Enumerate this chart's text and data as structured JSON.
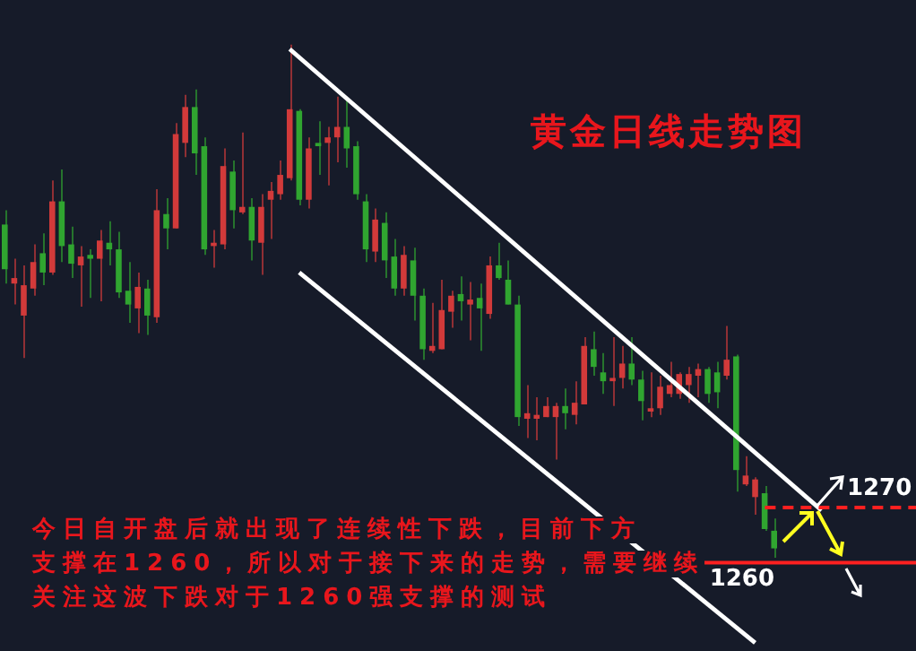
{
  "chart_data": {
    "type": "candlestick",
    "title": "黄金日线走势图",
    "annotations": [
      "今日自开盘后就出现了连续性下跌，目前下方",
      "支撑在1260，所以对于接下来的走势，需要继续",
      "关注这波下跌对于1260强支撑的测试"
    ],
    "categories": [
      null,
      null,
      null,
      null,
      null,
      null,
      null,
      null,
      null,
      null,
      null,
      null,
      null,
      null,
      null,
      null,
      null,
      null,
      null,
      null,
      null,
      null,
      null,
      null,
      null,
      null,
      null,
      null,
      null,
      null,
      null,
      null,
      null,
      null,
      null,
      null,
      null,
      null,
      null,
      null,
      null,
      null,
      null,
      null,
      null,
      null,
      null,
      null,
      null,
      null,
      null,
      null,
      null,
      null,
      null,
      null,
      null,
      null,
      null,
      null,
      null,
      null,
      null,
      null,
      null,
      null,
      null,
      null,
      null,
      null,
      null,
      null,
      null,
      null,
      null,
      null,
      null,
      null,
      null,
      null,
      null,
      null,
      null,
      null,
      null,
      null,
      null
    ],
    "ohlc": [
      [
        1321.3,
        1323.9,
        1310.6,
        1313.2
      ],
      [
        1310.6,
        1315.1,
        1306.8,
        1311.6
      ],
      [
        1304.8,
        1313.9,
        1297.1,
        1310.3
      ],
      [
        1309.7,
        1317.7,
        1308.4,
        1314.5
      ],
      [
        1316.1,
        1319.7,
        1310.3,
        1312.6
      ],
      [
        1312.6,
        1329.3,
        1312.2,
        1325.5
      ],
      [
        1325.5,
        1331.3,
        1314.5,
        1317.4
      ],
      [
        1317.7,
        1320.9,
        1311.6,
        1314.2
      ],
      [
        1313.9,
        1317.4,
        1306.4,
        1315.5
      ],
      [
        1315.8,
        1316.8,
        1308.0,
        1315.1
      ],
      [
        1315.1,
        1320.3,
        1307.4,
        1318.4
      ],
      [
        1318.0,
        1321.9,
        1313.9,
        1316.8
      ],
      [
        1316.8,
        1320.0,
        1308.0,
        1309.0
      ],
      [
        1309.3,
        1314.5,
        1303.5,
        1306.8
      ],
      [
        1306.1,
        1312.6,
        1301.6,
        1310.0
      ],
      [
        1309.7,
        1311.3,
        1301.3,
        1304.8
      ],
      [
        1304.5,
        1327.7,
        1303.5,
        1323.9
      ],
      [
        1323.2,
        1326.1,
        1316.8,
        1320.6
      ],
      [
        1320.6,
        1339.7,
        1320.6,
        1337.7
      ],
      [
        1336.1,
        1344.8,
        1333.5,
        1342.6
      ],
      [
        1342.6,
        1345.8,
        1330.3,
        1334.2
      ],
      [
        1335.5,
        1337.1,
        1315.8,
        1316.8
      ],
      [
        1317.4,
        1320.3,
        1313.5,
        1318.0
      ],
      [
        1317.7,
        1335.1,
        1316.8,
        1331.9
      ],
      [
        1330.9,
        1332.9,
        1320.6,
        1323.9
      ],
      [
        1323.5,
        1338.0,
        1323.2,
        1324.5
      ],
      [
        1324.5,
        1326.1,
        1314.8,
        1318.4
      ],
      [
        1318.0,
        1326.8,
        1312.2,
        1324.5
      ],
      [
        1325.8,
        1329.0,
        1318.7,
        1327.4
      ],
      [
        1326.8,
        1332.9,
        1325.8,
        1330.3
      ],
      [
        1329.7,
        1353.9,
        1329.3,
        1342.2
      ],
      [
        1341.9,
        1342.2,
        1324.8,
        1325.8
      ],
      [
        1325.8,
        1337.1,
        1324.2,
        1335.1
      ],
      [
        1336.1,
        1340.0,
        1330.3,
        1335.5
      ],
      [
        1336.1,
        1339.0,
        1328.4,
        1337.1
      ],
      [
        1337.1,
        1344.5,
        1332.6,
        1339.0
      ],
      [
        1339.0,
        1343.9,
        1331.6,
        1335.1
      ],
      [
        1335.5,
        1336.4,
        1325.8,
        1326.8
      ],
      [
        1325.5,
        1326.8,
        1314.5,
        1316.8
      ],
      [
        1316.4,
        1324.2,
        1314.5,
        1322.2
      ],
      [
        1321.6,
        1323.5,
        1311.6,
        1314.8
      ],
      [
        1315.5,
        1318.7,
        1308.4,
        1309.7
      ],
      [
        1309.7,
        1317.4,
        1308.4,
        1315.8
      ],
      [
        1314.8,
        1317.1,
        1303.9,
        1308.4
      ],
      [
        1308.4,
        1309.7,
        1296.8,
        1298.7
      ],
      [
        1298.4,
        1307.1,
        1298.0,
        1299.3
      ],
      [
        1298.7,
        1311.3,
        1298.7,
        1305.8
      ],
      [
        1305.5,
        1309.3,
        1302.6,
        1308.4
      ],
      [
        1308.7,
        1311.9,
        1303.9,
        1307.4
      ],
      [
        1306.8,
        1310.9,
        1300.3,
        1307.7
      ],
      [
        1308.0,
        1310.6,
        1298.4,
        1306.1
      ],
      [
        1305.1,
        1315.5,
        1304.2,
        1313.9
      ],
      [
        1313.9,
        1318.0,
        1311.3,
        1311.6
      ],
      [
        1311.3,
        1314.8,
        1306.8,
        1306.8
      ],
      [
        1306.8,
        1308.4,
        1284.8,
        1286.4
      ],
      [
        1286.1,
        1292.2,
        1282.6,
        1287.1
      ],
      [
        1286.1,
        1290.0,
        1282.2,
        1286.8
      ],
      [
        1286.4,
        1290.0,
        1286.4,
        1288.4
      ],
      [
        1286.4,
        1289.0,
        1278.7,
        1288.4
      ],
      [
        1288.4,
        1291.6,
        1284.2,
        1287.1
      ],
      [
        1286.8,
        1292.9,
        1285.1,
        1289.0
      ],
      [
        1288.7,
        1300.9,
        1288.7,
        1299.3
      ],
      [
        1298.7,
        1301.9,
        1293.9,
        1295.5
      ],
      [
        1294.5,
        1298.0,
        1290.6,
        1292.9
      ],
      [
        1292.9,
        1300.9,
        1288.4,
        1293.5
      ],
      [
        1293.5,
        1299.3,
        1291.6,
        1296.1
      ],
      [
        1296.1,
        1300.9,
        1292.2,
        1293.2
      ],
      [
        1293.2,
        1294.8,
        1285.8,
        1289.3
      ],
      [
        1287.4,
        1294.5,
        1286.4,
        1288.0
      ],
      [
        1288.0,
        1293.9,
        1286.8,
        1291.9
      ],
      [
        1290.6,
        1296.4,
        1290.0,
        1292.2
      ],
      [
        1290.6,
        1294.5,
        1289.7,
        1294.2
      ],
      [
        1292.2,
        1295.5,
        1289.0,
        1294.2
      ],
      [
        1293.9,
        1296.1,
        1290.0,
        1295.1
      ],
      [
        1295.1,
        1295.5,
        1289.0,
        1290.6
      ],
      [
        1294.5,
        1296.4,
        1288.0,
        1290.9
      ],
      [
        1293.9,
        1302.9,
        1293.2,
        1296.8
      ],
      [
        1297.4,
        1297.7,
        1272.9,
        1276.8
      ],
      [
        1274.2,
        1279.3,
        1273.9,
        1275.8
      ],
      [
        1271.9,
        1275.5,
        1268.7,
        1275.1
      ],
      [
        1272.6,
        1273.9,
        1265.8,
        1266.1
      ],
      [
        1265.8,
        1268.0,
        1260.9,
        1262.6
      ],
      null,
      null,
      null,
      null,
      null
    ],
    "colors": [
      "#30a530",
      "#d23a3a",
      "#d23a3a",
      "#d23a3a",
      "#30a530",
      "#d23a3a",
      "#30a530",
      "#30a530",
      "#d23a3a",
      "#30a530",
      "#d23a3a",
      "#30a530",
      "#30a530",
      "#30a530",
      "#d23a3a",
      "#30a530",
      "#d23a3a",
      "#30a530",
      "#d23a3a",
      "#d23a3a",
      "#30a530",
      "#30a530",
      "#d23a3a",
      "#d23a3a",
      "#30a530",
      "#d23a3a",
      "#30a530",
      "#d23a3a",
      "#d23a3a",
      "#d23a3a",
      "#d23a3a",
      "#30a530",
      "#d23a3a",
      "#30a530",
      "#d23a3a",
      "#d23a3a",
      "#30a530",
      "#30a530",
      "#30a530",
      "#d23a3a",
      "#30a530",
      "#30a530",
      "#d23a3a",
      "#30a530",
      "#30a530",
      "#d23a3a",
      "#d23a3a",
      "#d23a3a",
      "#30a530",
      "#d23a3a",
      "#30a530",
      "#d23a3a",
      "#30a530",
      "#30a530",
      "#30a530",
      "#d23a3a",
      "#d23a3a",
      "#d23a3a",
      "#d23a3a",
      "#30a530",
      "#d23a3a",
      "#d23a3a",
      "#30a530",
      "#30a530",
      "#d23a3a",
      "#d23a3a",
      "#30a530",
      "#30a530",
      "#d23a3a",
      "#d23a3a",
      "#d23a3a",
      "#d23a3a",
      "#d23a3a",
      "#d23a3a",
      "#30a530",
      "#30a530",
      "#d23a3a",
      "#30a530",
      "#d23a3a",
      "#d23a3a",
      "#30a530",
      "#30a530",
      null,
      null,
      null,
      null,
      null
    ],
    "series": [
      {
        "type": "line",
        "color": "#ffffff",
        "values": [
          null,
          null,
          null,
          null,
          null,
          null,
          null,
          null,
          null,
          null,
          null,
          null,
          null,
          null,
          null,
          null,
          null,
          null,
          null,
          null,
          null,
          null,
          null,
          null,
          null,
          null,
          null,
          null,
          null,
          null,
          1353.1,
          null,
          null,
          null,
          null,
          null,
          null,
          null,
          null,
          null,
          null,
          null,
          null,
          null,
          null,
          null,
          null,
          null,
          null,
          null,
          null,
          null,
          null,
          null,
          null,
          null,
          null,
          null,
          null,
          null,
          null,
          null,
          null,
          null,
          null,
          null,
          null,
          null,
          null,
          null,
          null,
          null,
          null,
          null,
          null,
          null,
          null,
          null,
          null,
          null,
          null,
          null,
          null,
          null,
          null,
          null,
          1269.5
        ]
      },
      {
        "type": "line",
        "color": "#ffffff",
        "values": [
          null,
          null,
          null,
          null,
          null,
          null,
          null,
          null,
          null,
          null,
          null,
          null,
          null,
          null,
          null,
          null,
          null,
          null,
          null,
          null,
          null,
          null,
          null,
          null,
          null,
          null,
          null,
          null,
          null,
          null,
          null,
          1312.6,
          null,
          null,
          null,
          null,
          null,
          null,
          null,
          null,
          null,
          null,
          null,
          null,
          null,
          null,
          null,
          null,
          null,
          null,
          null,
          null,
          null,
          null,
          null,
          null,
          null,
          null,
          null,
          null,
          null,
          null,
          null,
          null,
          null,
          null,
          null,
          null,
          null,
          null,
          null,
          null,
          null,
          null,
          null,
          null,
          null,
          null,
          null,
          1245.5,
          null,
          null,
          null,
          null,
          null,
          null,
          null
        ]
      }
    ],
    "ylim": [
      1244,
      1362
    ],
    "tick_labels": false,
    "legend": false,
    "ref_lines": [
      {
        "axis": "y",
        "value": 1270,
        "label": "1270",
        "color": "#ff2020",
        "line_style": "dashed"
      },
      {
        "axis": "y",
        "value": 1260,
        "label": "1260",
        "color": "#ff2020",
        "line_style": "solid"
      }
    ]
  }
}
